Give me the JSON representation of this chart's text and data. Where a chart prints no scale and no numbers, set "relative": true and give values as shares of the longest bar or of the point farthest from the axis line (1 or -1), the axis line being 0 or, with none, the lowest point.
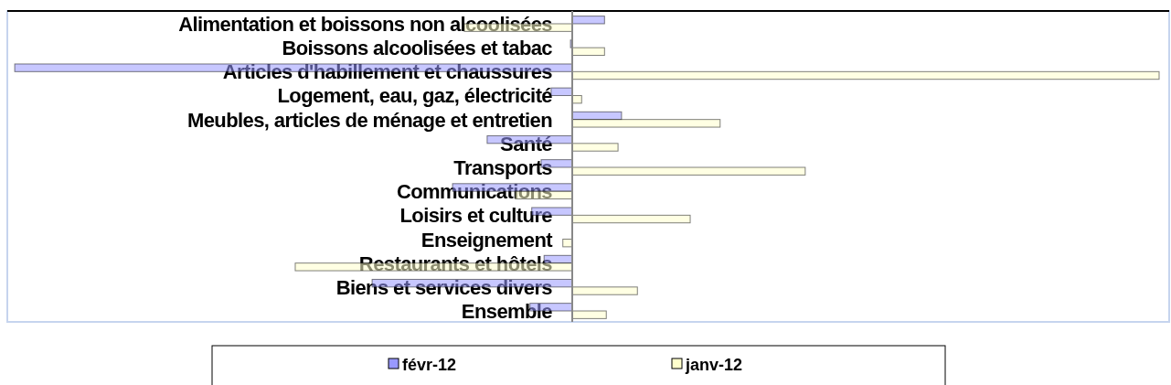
{
  "chart_data": {
    "type": "bar",
    "orientation": "horizontal",
    "relative": true,
    "legend": "bottom",
    "categories": [
      "Alimentation et boissons non alcoolisées",
      "Boissons alcoolisées et tabac",
      "Articles d'habillement et chaussures",
      "Logement, eau, gaz, électricité",
      "Meubles, articles de ménage et entretien",
      "Santé",
      "Transports",
      "Communications",
      "Loisirs et culture",
      "Enseignement",
      "Restaurants et hôtels",
      "Biens et services divers",
      "Ensemble"
    ],
    "series": [
      {
        "name": "févr-12",
        "color": "#9999ff",
        "values": [
          0.055,
          -0.003,
          -0.95,
          -0.036,
          0.084,
          -0.145,
          -0.053,
          -0.204,
          -0.069,
          0,
          -0.048,
          -0.341,
          -0.072
        ]
      },
      {
        "name": "janv-12",
        "color": "#ffffcc",
        "values": [
          -0.184,
          0.055,
          1,
          0.016,
          0.252,
          0.078,
          0.397,
          -0.097,
          0.201,
          -0.016,
          -0.472,
          0.111,
          0.058
        ]
      }
    ]
  }
}
